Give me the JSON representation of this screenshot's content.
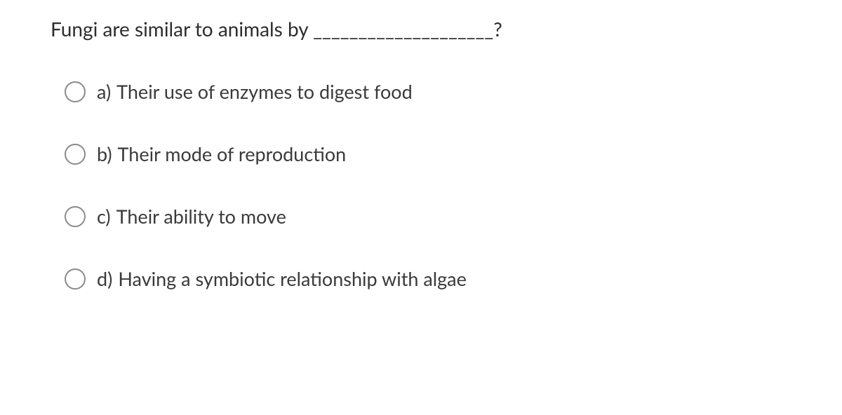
{
  "question": {
    "text": "Fungi are similar to animals by ____________________?"
  },
  "options": [
    {
      "letter": "a)",
      "text": "Their use of enzymes to digest food"
    },
    {
      "letter": "b)",
      "text": "Their mode of reproduction"
    },
    {
      "letter": "c)",
      "text": "Their ability to move"
    },
    {
      "letter": "d)",
      "text": "Having a symbiotic relationship with algae"
    }
  ],
  "colors": {
    "text_primary": "#2d2d2d",
    "text_option": "#3a3a3a",
    "radio_border": "#8a8a8a",
    "background": "#ffffff"
  },
  "typography": {
    "question_fontsize": 28,
    "option_fontsize": 27,
    "font_family": "sans-serif"
  }
}
